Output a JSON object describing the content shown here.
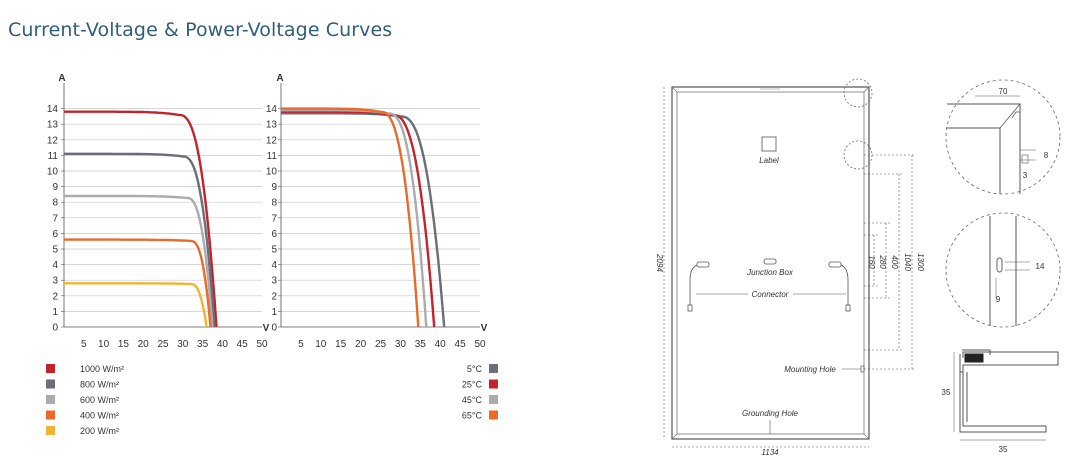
{
  "page": {
    "title": "Current-Voltage & Power-Voltage Curves"
  },
  "chart_data": [
    {
      "type": "line",
      "ylabel": "A",
      "xlabel": "V",
      "x_ticks": [
        5,
        10,
        15,
        20,
        25,
        30,
        35,
        40,
        45,
        50
      ],
      "y_ticks": [
        0,
        1,
        2,
        3,
        4,
        5,
        6,
        7,
        8,
        9,
        10,
        11,
        12,
        13,
        14
      ],
      "xlim": [
        0,
        50
      ],
      "ylim": [
        0,
        15
      ],
      "grid": "horizontal",
      "legend_position": "bottom-left",
      "series": [
        {
          "name": "1000 W/m²",
          "color": "#c4232b",
          "isc": 13.8,
          "voc": 38.5,
          "knee": 29
        },
        {
          "name": "800 W/m²",
          "color": "#6b6e78",
          "isc": 11.1,
          "voc": 38.0,
          "knee": 30
        },
        {
          "name": "600 W/m²",
          "color": "#a9abb0",
          "isc": 8.4,
          "voc": 37.5,
          "knee": 31
        },
        {
          "name": "400 W/m²",
          "color": "#e96a2a",
          "isc": 5.6,
          "voc": 37.0,
          "knee": 32
        },
        {
          "name": "200 W/m²",
          "color": "#f2b233",
          "isc": 2.8,
          "voc": 36.0,
          "knee": 32
        }
      ]
    },
    {
      "type": "line",
      "ylabel": "A",
      "xlabel": "V",
      "x_ticks": [
        5,
        10,
        15,
        20,
        25,
        30,
        35,
        40,
        45,
        50
      ],
      "y_ticks": [
        0,
        1,
        2,
        3,
        4,
        5,
        6,
        7,
        8,
        9,
        10,
        11,
        12,
        13,
        14
      ],
      "xlim": [
        0,
        50
      ],
      "ylim": [
        0,
        15
      ],
      "grid": "horizontal",
      "legend_position": "bottom-right",
      "series": [
        {
          "name": "5°C",
          "color": "#6b6e78",
          "isc": 13.7,
          "voc": 41.0,
          "knee": 30
        },
        {
          "name": "25°C",
          "color": "#c4232b",
          "isc": 13.8,
          "voc": 38.5,
          "knee": 28
        },
        {
          "name": "45°C",
          "color": "#a9abb0",
          "isc": 13.9,
          "voc": 36.5,
          "knee": 27
        },
        {
          "name": "65°C",
          "color": "#e96a2a",
          "isc": 14.0,
          "voc": 34.5,
          "knee": 25
        }
      ]
    }
  ],
  "drawing": {
    "label": "Label",
    "junction_box": "Junction Box",
    "connector": "Connector",
    "mounting_hole": "Mounting Hole",
    "grounding_hole": "Grounding Hole",
    "dim_width": "1134",
    "dim_height": "2094",
    "dim_1300": "1300",
    "dim_1040": "1040",
    "dim_400": "400",
    "dim_280": "280",
    "dim_160": "160",
    "detail1_70": "70",
    "detail1_8": "8",
    "detail1_3": "3",
    "detail2_14": "14",
    "detail2_9": "9",
    "profile_35_h": "35",
    "profile_35_w": "35"
  }
}
